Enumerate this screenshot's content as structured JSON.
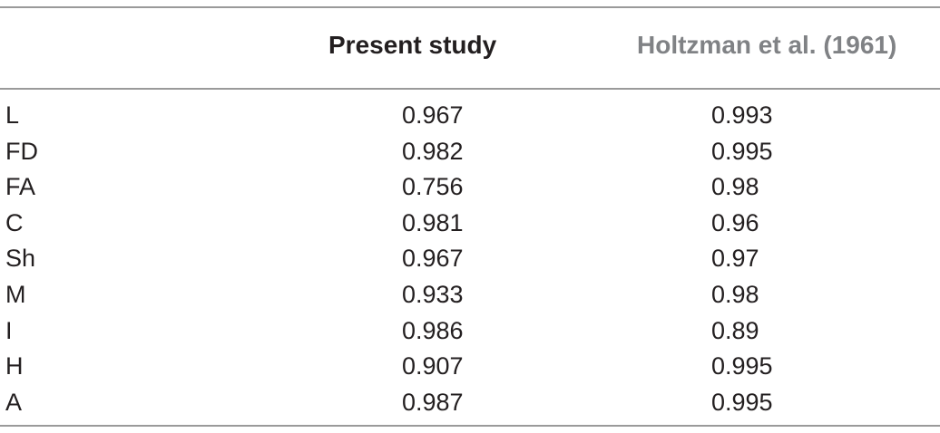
{
  "table": {
    "headers": {
      "label": "",
      "present": "Present study",
      "holtzman": "Holtzman et al. (1961)"
    },
    "rows": [
      {
        "label": "L",
        "present": "0.967",
        "holtzman": "0.993"
      },
      {
        "label": "FD",
        "present": "0.982",
        "holtzman": "0.995"
      },
      {
        "label": "FA",
        "present": "0.756",
        "holtzman": "0.98"
      },
      {
        "label": "C",
        "present": "0.981",
        "holtzman": "0.96"
      },
      {
        "label": "Sh",
        "present": "0.967",
        "holtzman": "0.97"
      },
      {
        "label": "M",
        "present": "0.933",
        "holtzman": "0.98"
      },
      {
        "label": "I",
        "present": "0.986",
        "holtzman": "0.89"
      },
      {
        "label": "H",
        "present": "0.907",
        "holtzman": "0.995"
      },
      {
        "label": "A",
        "present": "0.987",
        "holtzman": "0.995"
      }
    ]
  },
  "colors": {
    "text": "#231f20",
    "header_secondary": "#808285",
    "rule": "#9a9a9a"
  }
}
